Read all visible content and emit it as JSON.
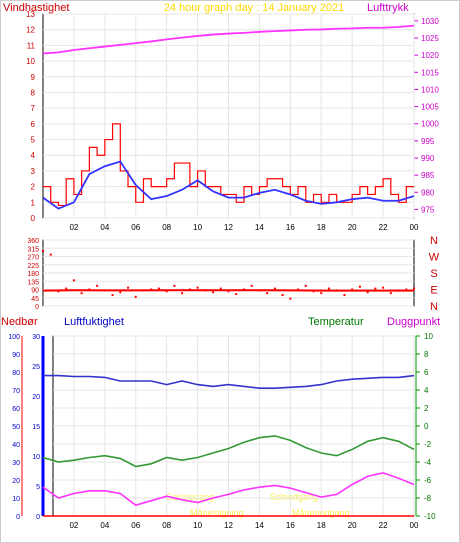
{
  "chart_data": [
    {
      "type": "line",
      "title": "24 hour graph day : 14 January 2021",
      "left_label": "Vindhastighet",
      "right_label": "Lufttrykk",
      "x_ticks": [
        "02",
        "04",
        "06",
        "08",
        "10",
        "12",
        "14",
        "16",
        "18",
        "20",
        "22",
        "00"
      ],
      "y_left_ticks": [
        "0",
        "1",
        "2",
        "3",
        "4",
        "5",
        "6",
        "7",
        "8",
        "9",
        "10",
        "11",
        "12",
        "13"
      ],
      "y_right_ticks": [
        "975",
        "980",
        "985",
        "990",
        "995",
        "1000",
        "1005",
        "1010",
        "1015",
        "1020",
        "1025",
        "1030"
      ],
      "ylim_left": [
        0,
        13
      ],
      "ylim_right": [
        972.5,
        1032
      ],
      "series": [
        {
          "name": "Vindhastighet",
          "color": "#ff0000",
          "x": [
            0,
            0.5,
            1,
            1.5,
            2,
            2.5,
            3,
            3.5,
            4,
            4.5,
            5,
            5.5,
            6,
            6.5,
            7,
            7.5,
            8,
            8.5,
            9,
            9.5,
            10,
            10.5,
            11,
            11.5,
            12,
            12.5,
            13,
            13.5,
            14,
            14.5,
            15,
            15.5,
            16,
            16.5,
            17,
            17.5,
            18,
            18.5,
            19,
            19.5,
            20,
            20.5,
            21,
            21.5,
            22,
            22.5,
            23,
            23.5,
            24
          ],
          "values": [
            2,
            1,
            0.8,
            2.5,
            1.5,
            3,
            4.5,
            4,
            5,
            6,
            3,
            2,
            1,
            2.5,
            2,
            2,
            2.5,
            3.5,
            3.5,
            2,
            3,
            2,
            2,
            1.5,
            1.5,
            1,
            2,
            1.5,
            2,
            2.5,
            2.5,
            2,
            1.5,
            2,
            1,
            1.5,
            1,
            1.5,
            1,
            1,
            1.5,
            2,
            1.5,
            2,
            2.5,
            1.5,
            1,
            2,
            2
          ]
        },
        {
          "name": "Vindhastighet (avg)",
          "color": "#3333ff",
          "x": [
            0,
            1,
            2,
            3,
            4,
            5,
            6,
            7,
            8,
            9,
            10,
            11,
            12,
            13,
            14,
            15,
            16,
            17,
            18,
            19,
            20,
            21,
            22,
            23,
            24
          ],
          "values": [
            1.3,
            0.6,
            1,
            2.8,
            3.3,
            3.6,
            2.1,
            1.2,
            1.4,
            1.8,
            2.4,
            1.7,
            1.3,
            1.3,
            1.6,
            1.8,
            1.5,
            1.1,
            0.9,
            1,
            1.2,
            1.3,
            1.1,
            1.1,
            1.4
          ]
        },
        {
          "name": "Lufttrykk",
          "color": "#ff33ff",
          "x": [
            0,
            1,
            2,
            3,
            4,
            5,
            6,
            7,
            8,
            9,
            10,
            11,
            12,
            13,
            14,
            15,
            16,
            17,
            18,
            19,
            20,
            21,
            22,
            23,
            24
          ],
          "values": [
            1020.5,
            1020.8,
            1021.5,
            1022,
            1022.5,
            1023,
            1023.5,
            1024,
            1024.6,
            1025.1,
            1025.6,
            1026,
            1026.3,
            1026.5,
            1026.8,
            1027,
            1027.2,
            1027.4,
            1027.5,
            1027.7,
            1027.8,
            1028,
            1028,
            1028.2,
            1028.6
          ]
        }
      ]
    },
    {
      "type": "scatter",
      "title": "",
      "y_ticks": [
        "360",
        "315",
        "270",
        "225",
        "180",
        "135",
        "90",
        "45",
        "0"
      ],
      "ylim": [
        0,
        360
      ],
      "compass_labels": [
        "N",
        "W",
        "S",
        "E",
        "N"
      ],
      "series": [
        {
          "name": "",
          "color": "#ff0000",
          "x": [
            0,
            0.5,
            1,
            1.5,
            2,
            2.5,
            3,
            3.5,
            4,
            4.5,
            5,
            5.5,
            6,
            6.5,
            7,
            7.5,
            8,
            8.5,
            9,
            9.5,
            10,
            10.5,
            11,
            11.5,
            12,
            12.5,
            13,
            13.5,
            14,
            14.5,
            15,
            15.5,
            16,
            16.5,
            17,
            17.5,
            18,
            18.5,
            19,
            19.5,
            20,
            20.5,
            21,
            21.5,
            22,
            22.5,
            23,
            23.5,
            24
          ],
          "values": [
            300,
            280,
            80,
            95,
            140,
            70,
            90,
            110,
            85,
            60,
            75,
            100,
            50,
            85,
            90,
            95,
            80,
            110,
            70,
            90,
            100,
            85,
            75,
            95,
            80,
            65,
            90,
            110,
            85,
            70,
            95,
            60,
            40,
            90,
            110,
            80,
            70,
            95,
            85,
            60,
            90,
            105,
            75,
            95,
            100,
            70,
            85,
            90,
            95
          ]
        },
        {
          "name": "",
          "color": "#ff0000",
          "x": [
            0,
            2,
            4,
            6,
            8,
            10,
            12,
            14,
            16,
            18,
            20,
            22,
            24
          ],
          "values": [
            84,
            86,
            85,
            85,
            86,
            86,
            86,
            86,
            85,
            84,
            84,
            84,
            84
          ]
        }
      ]
    },
    {
      "type": "line",
      "title": "",
      "labels": {
        "nedbor": "Nedbør",
        "luftfuktighet": "Luftfuktighet",
        "temperatur": "Temperatur",
        "duggpunkt": "Duggpunkt"
      },
      "y_left1_ticks": [
        "0",
        "10",
        "20",
        "30",
        "40",
        "50",
        "60",
        "70",
        "80",
        "90",
        "100"
      ],
      "y_left2_ticks": [
        "0",
        "5",
        "10",
        "15",
        "20",
        "25",
        "30"
      ],
      "y_right_ticks": [
        "-10",
        "-8",
        "-6",
        "-4",
        "-2",
        "0",
        "2",
        "4",
        "6",
        "8",
        "10"
      ],
      "ylim_humidity": [
        0,
        100
      ],
      "ylim_temp": [
        -10,
        10
      ],
      "annotations": {
        "sunrise": "Soloppgang",
        "sunset": "Solnedgang",
        "moonrise": "Månestigning",
        "moonset": "Månenedgang"
      },
      "series": [
        {
          "name": "Luftfuktighet",
          "color": "#3333cc",
          "x": [
            0,
            1,
            2,
            3,
            4,
            5,
            6,
            7,
            8,
            9,
            10,
            11,
            12,
            13,
            14,
            15,
            16,
            17,
            18,
            19,
            20,
            21,
            22,
            23,
            24
          ],
          "values": [
            78,
            78,
            77.5,
            77.5,
            77,
            75,
            75,
            75,
            73,
            75,
            73,
            72,
            73,
            72,
            71,
            71,
            71.5,
            72,
            73,
            75,
            76,
            76.5,
            77,
            77,
            78
          ]
        },
        {
          "name": "Temperatur",
          "color": "#339933",
          "x": [
            0,
            1,
            2,
            3,
            4,
            5,
            6,
            7,
            8,
            9,
            10,
            11,
            12,
            13,
            14,
            15,
            16,
            17,
            18,
            19,
            20,
            21,
            22,
            23,
            24
          ],
          "values": [
            -3.5,
            -4,
            -3.8,
            -3.5,
            -3.3,
            -3.6,
            -4.5,
            -4.2,
            -3.5,
            -3.8,
            -3.5,
            -3,
            -2.5,
            -1.8,
            -1.3,
            -1.1,
            -1.6,
            -2.4,
            -3,
            -3.3,
            -2.6,
            -1.7,
            -1.3,
            -1.7,
            -2.6
          ]
        },
        {
          "name": "Duggpunkt",
          "color": "#ff33ff",
          "x": [
            0,
            1,
            2,
            3,
            4,
            5,
            6,
            7,
            8,
            9,
            10,
            11,
            12,
            13,
            14,
            15,
            16,
            17,
            18,
            19,
            20,
            21,
            22,
            23,
            24
          ],
          "values": [
            -6.8,
            -8,
            -7.5,
            -7.2,
            -7.2,
            -7.5,
            -8.8,
            -8.3,
            -7.8,
            -8.2,
            -8.5,
            -8,
            -7.6,
            -7.1,
            -6.8,
            -6.6,
            -6.9,
            -7.4,
            -7.9,
            -7.6,
            -6.5,
            -5.6,
            -5.2,
            -5.8,
            -6.5
          ]
        },
        {
          "name": "Nedbør",
          "color": "#ff0000",
          "x": [
            0,
            24
          ],
          "values": [
            0,
            0
          ]
        }
      ]
    }
  ]
}
